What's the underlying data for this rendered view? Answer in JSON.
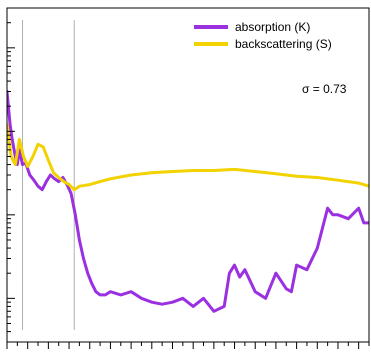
{
  "chart_data": {
    "type": "line",
    "title": "",
    "xlabel": "",
    "ylabel": "",
    "log_y": true,
    "xlim": [
      0,
      350
    ],
    "ylim": [
      0.03,
      300
    ],
    "y_decades": [
      0.1,
      1,
      10,
      100
    ],
    "grid": false,
    "legend_position": "top-right",
    "annotation": "σ = 0.73",
    "vlines": [
      15,
      65
    ],
    "colors": {
      "absorption": "#9b30e0",
      "backscattering": "#f2d200"
    },
    "series": [
      {
        "name": "absorption (K)",
        "key": "absorption",
        "x": [
          0,
          3,
          5,
          8,
          10,
          12,
          15,
          18,
          22,
          26,
          30,
          34,
          38,
          42,
          46,
          50,
          54,
          58,
          62,
          66,
          70,
          74,
          78,
          82,
          86,
          90,
          95,
          100,
          110,
          120,
          130,
          140,
          150,
          160,
          170,
          180,
          190,
          200,
          210,
          215,
          220,
          225,
          230,
          240,
          250,
          260,
          270,
          275,
          280,
          290,
          300,
          310,
          315,
          320,
          330,
          340,
          345,
          350
        ],
        "y": [
          30,
          12,
          8,
          5,
          4,
          6,
          4,
          4.2,
          3,
          2.6,
          2.2,
          2.0,
          2.5,
          3.0,
          2.7,
          2.5,
          2.8,
          2.3,
          1.8,
          1.0,
          0.5,
          0.3,
          0.2,
          0.15,
          0.12,
          0.11,
          0.11,
          0.12,
          0.11,
          0.12,
          0.1,
          0.09,
          0.085,
          0.09,
          0.1,
          0.08,
          0.1,
          0.07,
          0.08,
          0.2,
          0.25,
          0.18,
          0.22,
          0.12,
          0.1,
          0.2,
          0.13,
          0.12,
          0.25,
          0.22,
          0.4,
          1.2,
          1.0,
          1.0,
          0.9,
          1.2,
          0.8,
          0.8
        ]
      },
      {
        "name": "backscattering (S)",
        "key": "backscattering",
        "x": [
          0,
          4,
          8,
          12,
          16,
          20,
          25,
          30,
          35,
          40,
          45,
          50,
          55,
          60,
          65,
          70,
          80,
          90,
          100,
          120,
          140,
          160,
          180,
          200,
          220,
          240,
          260,
          280,
          300,
          320,
          340,
          350
        ],
        "y": [
          12,
          5,
          4,
          8,
          5,
          3.8,
          5,
          7,
          6.5,
          4.5,
          3.2,
          2.8,
          2.5,
          2.3,
          2.0,
          2.2,
          2.3,
          2.5,
          2.7,
          3.0,
          3.2,
          3.3,
          3.4,
          3.4,
          3.5,
          3.3,
          3.1,
          2.9,
          2.8,
          2.6,
          2.4,
          2.2
        ]
      }
    ]
  }
}
